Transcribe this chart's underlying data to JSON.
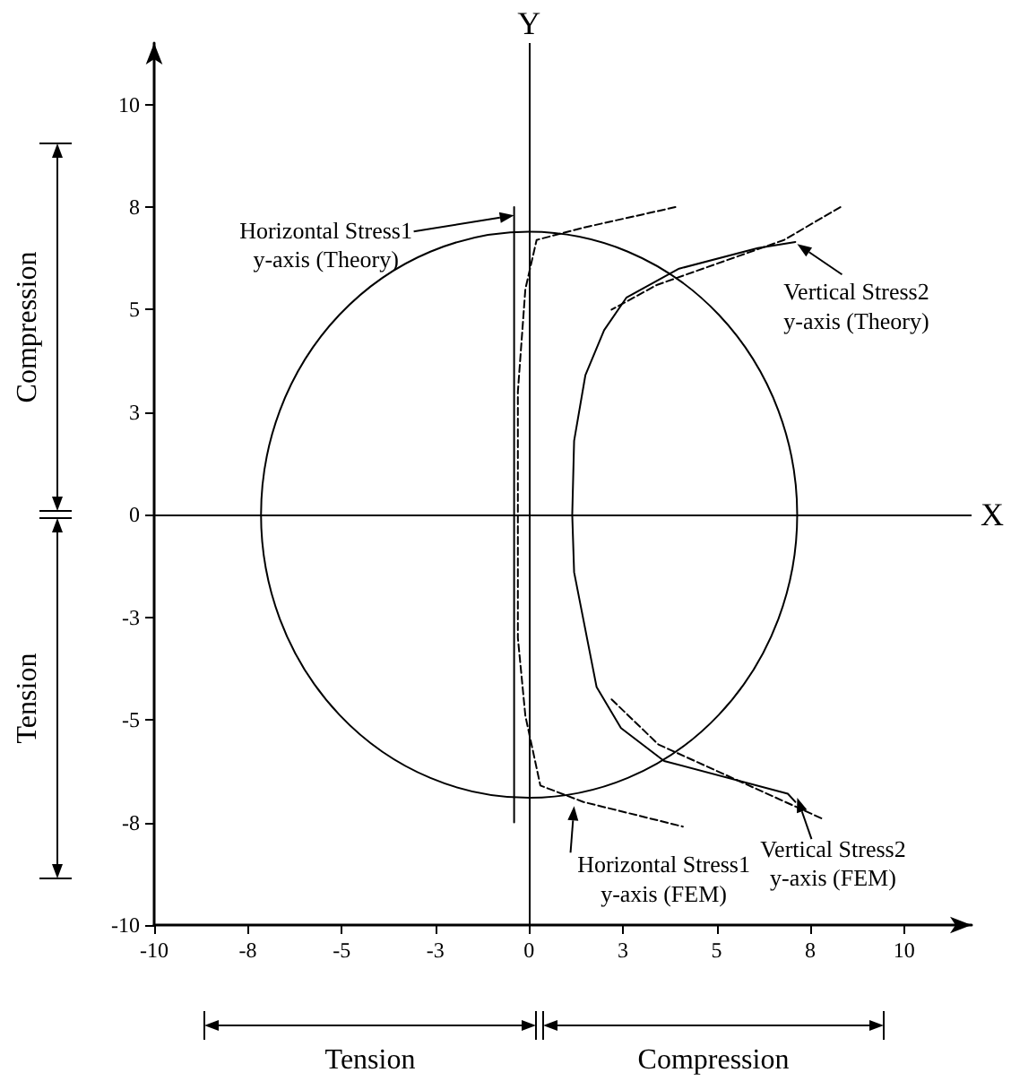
{
  "chart_data": {
    "type": "line",
    "xlim": [
      -10,
      11.8
    ],
    "ylim": [
      -10,
      11.5
    ],
    "xticks": [
      -10,
      {
        "value": -7.5,
        "label": "-8"
      },
      -5,
      {
        "value": -2.5,
        "label": "-3"
      },
      0,
      {
        "value": 2.5,
        "label": "3"
      },
      5,
      {
        "value": 7.5,
        "label": "8"
      },
      10
    ],
    "yticks": [
      -10,
      {
        "value": -7.5,
        "label": "-8"
      },
      -5,
      {
        "value": -2.5,
        "label": "-3"
      },
      0,
      {
        "value": 2.5,
        "label": "3"
      },
      5,
      {
        "value": 7.5,
        "label": "8"
      },
      10
    ],
    "grid": false,
    "marker": "none",
    "ref_lines": [
      {
        "axis": "x",
        "value": 0,
        "label": "Y",
        "color": "#000000"
      },
      {
        "axis": "y",
        "value": 0,
        "label": "X",
        "color": "#000000"
      }
    ],
    "series": [
      {
        "color": "#000000",
        "line_style": "solid",
        "x": [
          -0.4,
          -0.4
        ],
        "values": [
          7.5,
          -7.5
        ]
      },
      {
        "color": "#000000",
        "line_style": "dashed",
        "x": [
          3.9,
          1.45,
          0.2,
          -0.1,
          -0.3,
          -0.3,
          -0.3,
          -0.1,
          0.3,
          1.45,
          4.1
        ],
        "values": [
          7.5,
          7.0,
          6.7,
          5.5,
          3.0,
          0,
          -3.0,
          -4.9,
          -6.6,
          -7.0,
          -7.6
        ]
      },
      {
        "color": "#000000",
        "line_style": "solid",
        "x": [
          7.1,
          6.1,
          4.0,
          2.6,
          2.0,
          1.5,
          1.2,
          1.15,
          1.2,
          1.8,
          2.45,
          3.6,
          6.9,
          7.1
        ],
        "values": [
          6.65,
          6.5,
          6.0,
          5.3,
          4.5,
          3.4,
          1.8,
          0,
          -1.4,
          -4.2,
          -5.2,
          -6.0,
          -6.8,
          -7.0
        ]
      },
      {
        "color": "#000000",
        "line_style": "dashed",
        "x": [
          8.3,
          6.8,
          3.4,
          2.2
        ],
        "values": [
          7.5,
          6.7,
          5.6,
          5.0
        ]
      },
      {
        "color": "#000000",
        "line_style": "dashed",
        "x": [
          2.2,
          3.45,
          7.8
        ],
        "values": [
          -4.5,
          -5.6,
          -7.4
        ]
      }
    ],
    "annotations": [
      {
        "text": "Horizontal Stress1\ny-axis (Theory)",
        "x": -0.4,
        "y": 7.3
      },
      {
        "text": "Vertical Stress2\ny-axis (Theory)",
        "x": 7.15,
        "y": 6.6
      },
      {
        "text": "Vertical Stress2\ny-axis (FEM)",
        "x": 7.15,
        "y": -6.9
      },
      {
        "text": "Horizontal Stress1\ny-axis (FEM)",
        "x": 1.2,
        "y": -7.1
      },
      "Compression",
      "Tension",
      "Tension",
      "Compression"
    ]
  }
}
